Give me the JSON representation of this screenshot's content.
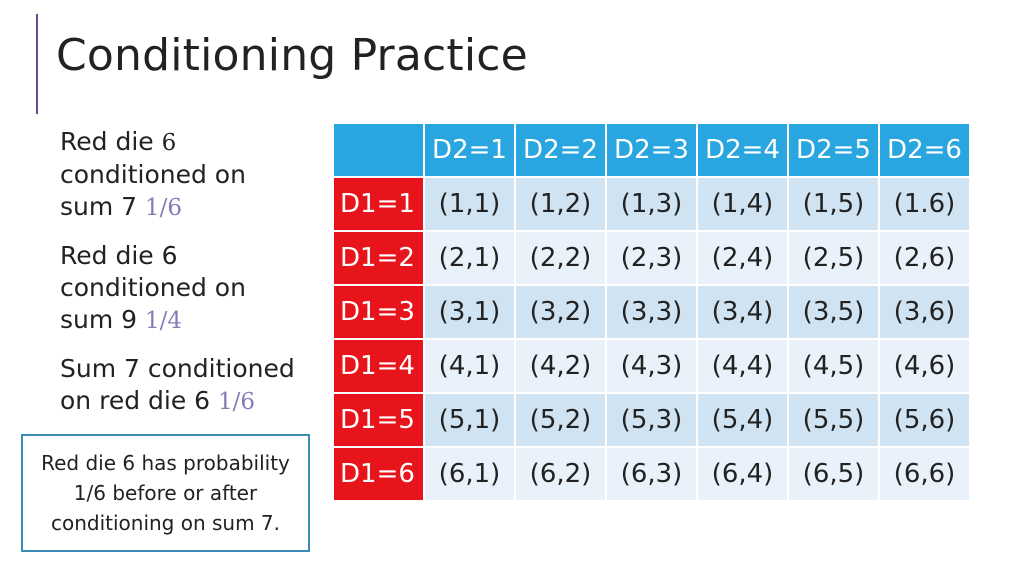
{
  "slide": {
    "title": "Conditioning Practice"
  },
  "bullets": [
    {
      "line1": "Red die ",
      "num": "6",
      "line2": "conditioned on",
      "line3": "sum 7 ",
      "frac": "1/6"
    },
    {
      "line1": "Red die 6",
      "line2": "conditioned on",
      "line3": "sum 9 ",
      "frac": "1/4"
    },
    {
      "line1": "Sum 7 conditioned",
      "line2": "on red die 6 ",
      "frac": "1/6"
    }
  ],
  "callout": {
    "text": "Red die 6 has probability 1/6 before or after conditioning on sum 7."
  },
  "table": {
    "col_headers": [
      "D2=1",
      "D2=2",
      "D2=3",
      "D2=4",
      "D2=5",
      "D2=6"
    ],
    "row_headers": [
      "D1=1",
      "D1=2",
      "D1=3",
      "D1=4",
      "D1=5",
      "D1=6"
    ],
    "rows": [
      [
        "(1,1)",
        "(1,2)",
        "(1,3)",
        "(1,4)",
        "(1,5)",
        "(1.6)"
      ],
      [
        "(2,1)",
        "(2,2)",
        "(2,3)",
        "(2,4)",
        "(2,5)",
        "(2,6)"
      ],
      [
        "(3,1)",
        "(3,2)",
        "(3,3)",
        "(3,4)",
        "(3,5)",
        "(3,6)"
      ],
      [
        "(4,1)",
        "(4,2)",
        "(4,3)",
        "(4,4)",
        "(4,5)",
        "(4,6)"
      ],
      [
        "(5,1)",
        "(5,2)",
        "(5,3)",
        "(5,4)",
        "(5,5)",
        "(5,6)"
      ],
      [
        "(6,1)",
        "(6,2)",
        "(6,3)",
        "(6,4)",
        "(6,5)",
        "(6,6)"
      ]
    ]
  },
  "colors": {
    "header_blue": "#29a6e0",
    "row_header_red": "#e8141b",
    "fraction_purple": "#8a7ab8",
    "accent_line": "#6a4a8c",
    "callout_border": "#3b8db3"
  }
}
